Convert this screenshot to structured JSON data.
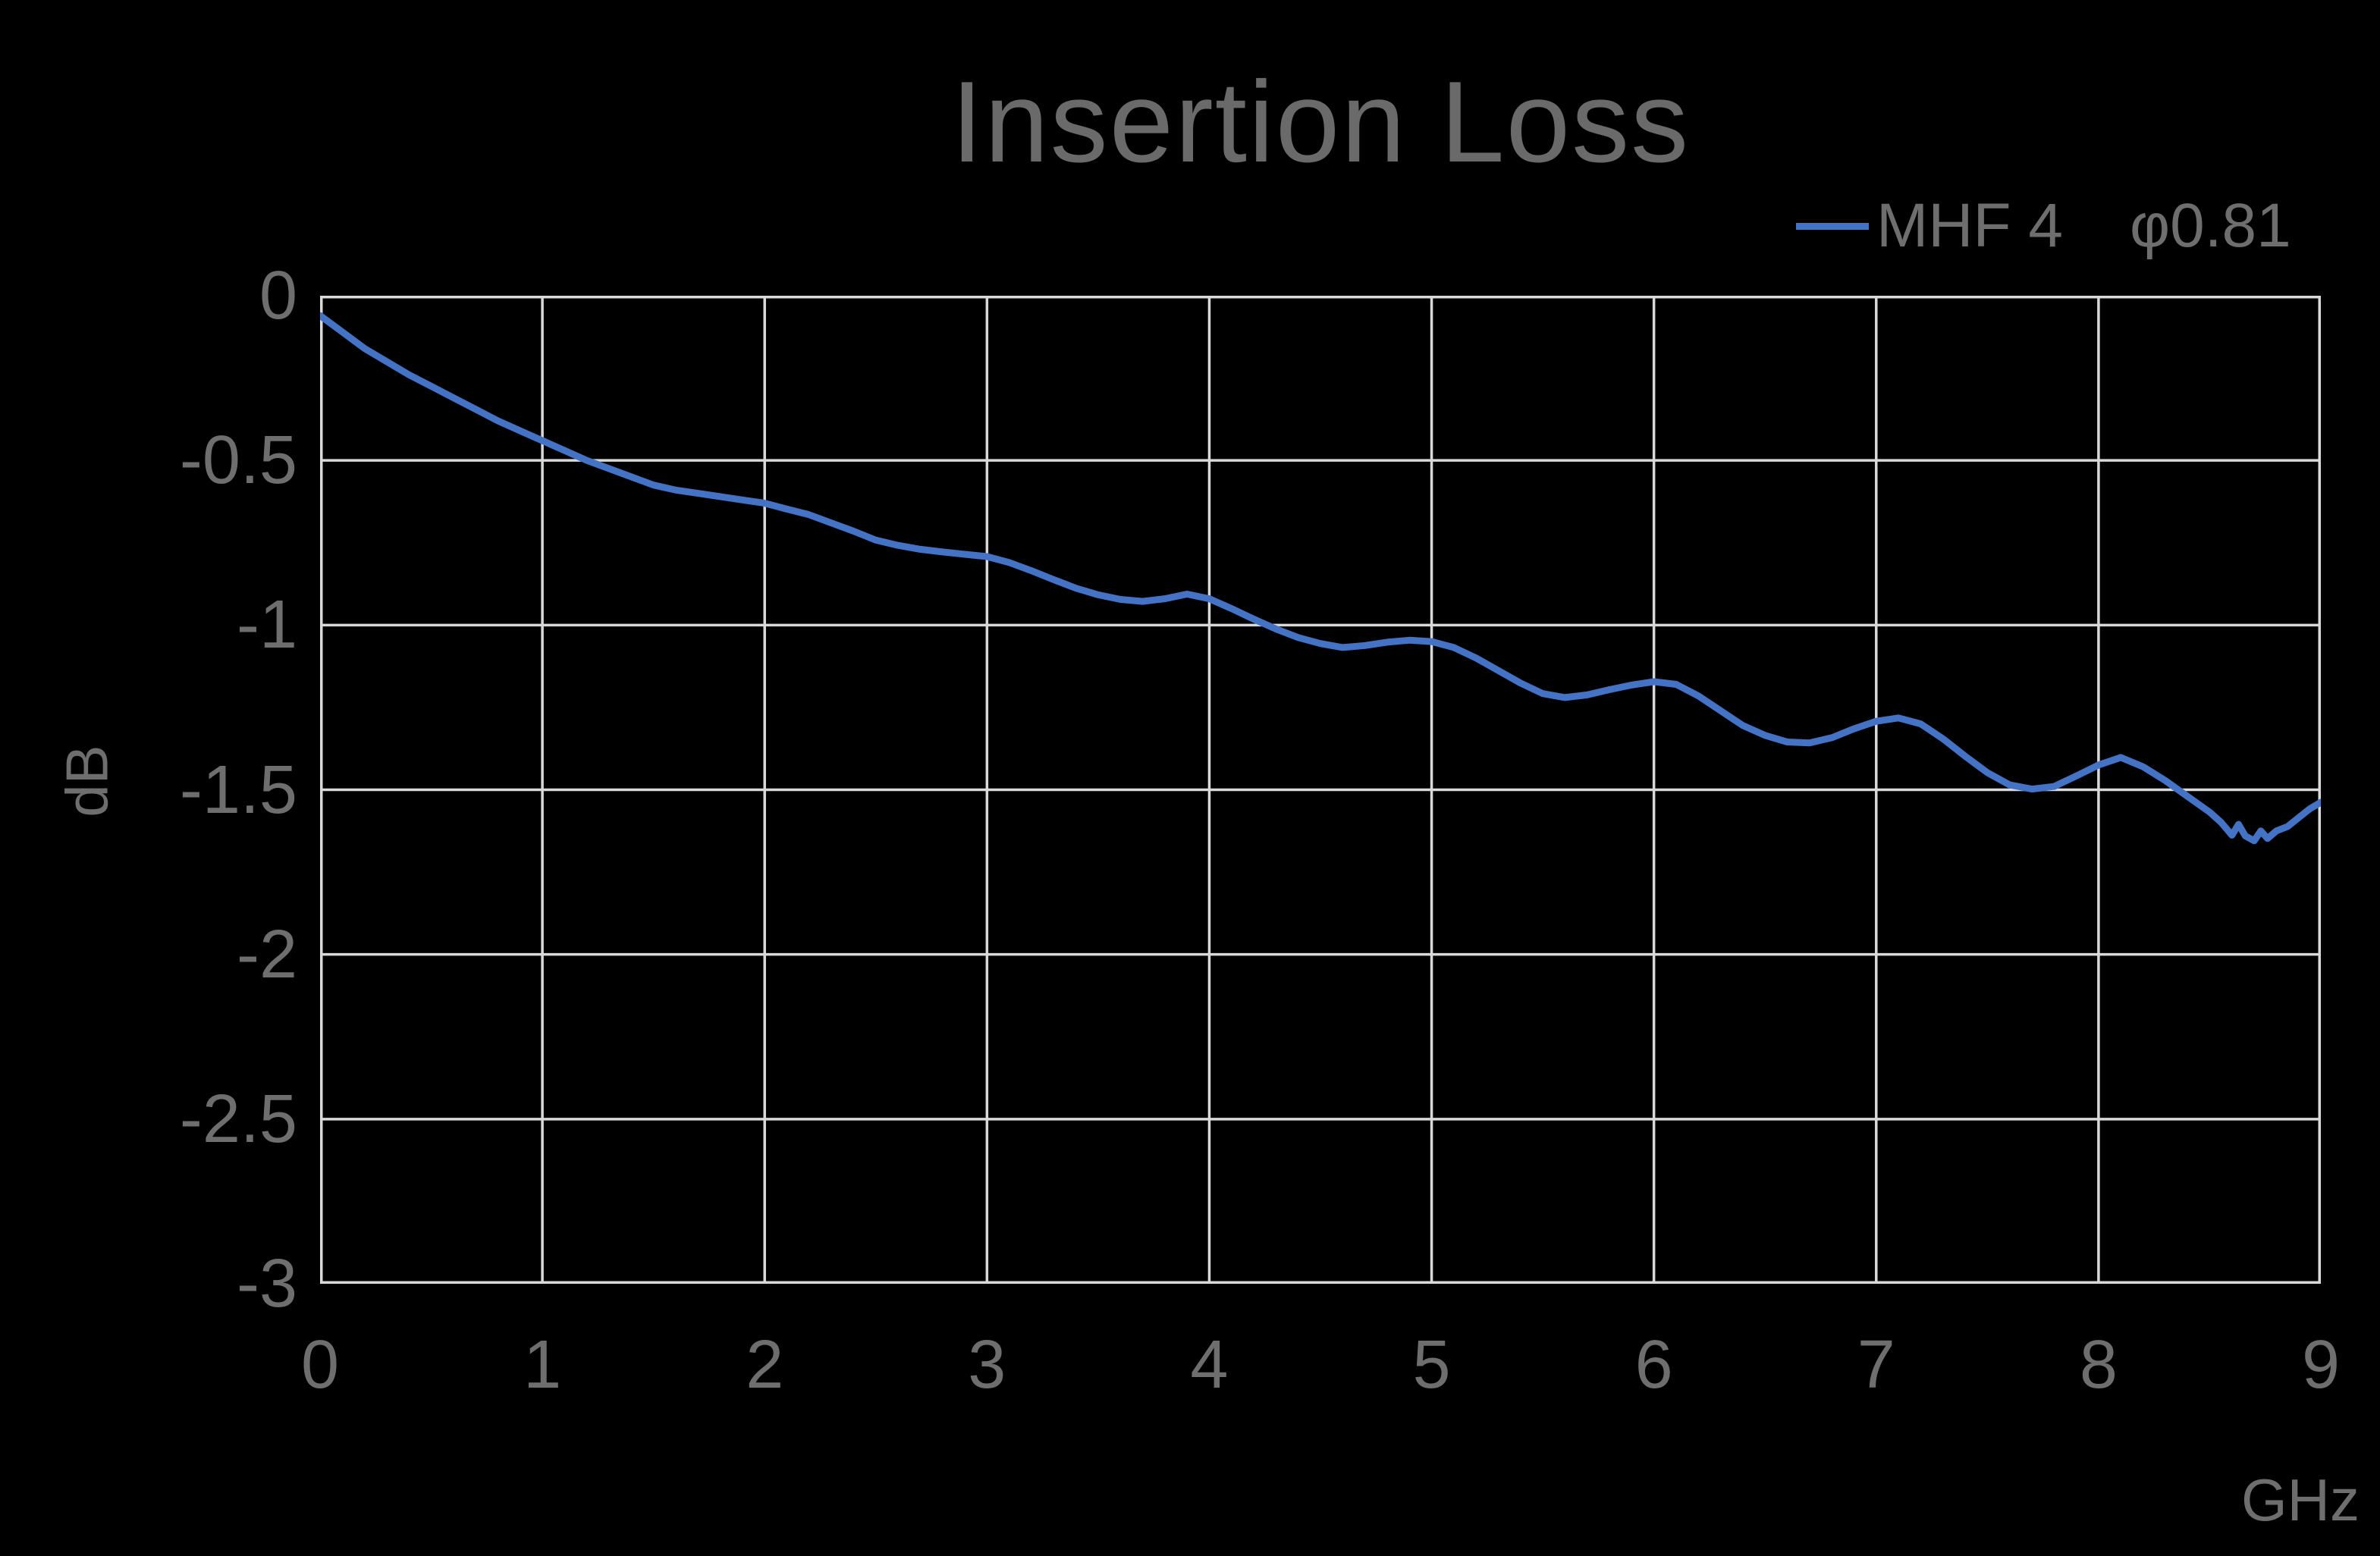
{
  "chart": {
    "title": "Insertion Loss",
    "ylabel": "dB",
    "x_unit": "GHz",
    "legend": {
      "series_label": "MHF 4",
      "series_sublabel": "φ0.81"
    }
  },
  "chart_data": {
    "type": "line",
    "title": "Insertion Loss",
    "xlabel": "GHz",
    "ylabel": "dB",
    "xlim": [
      0,
      9
    ],
    "ylim": [
      -3,
      0
    ],
    "xticks": [
      0,
      1,
      2,
      3,
      4,
      5,
      6,
      7,
      8,
      9
    ],
    "xtick_labels": [
      "0",
      "1",
      "2",
      "3",
      "4",
      "5",
      "6",
      "7",
      "8",
      "9"
    ],
    "yticks": [
      0,
      -0.5,
      -1,
      -1.5,
      -2,
      -2.5,
      -3
    ],
    "ytick_labels": [
      "0",
      "-0.5",
      "-1",
      "-1.5",
      "-2",
      "-2.5",
      "-3"
    ],
    "grid": true,
    "legend_position": "top-right",
    "colors": {
      "background": "#000000",
      "grid": "#D9D9D9",
      "line": "#4472C4",
      "text": "#6E6E6E",
      "title_text": "#6A6A6A"
    },
    "series": [
      {
        "name": "MHF 4 φ0.81",
        "color": "#4472C4",
        "x": [
          0,
          0.1,
          0.2,
          0.3,
          0.4,
          0.5,
          0.6,
          0.7,
          0.8,
          0.9,
          1.0,
          1.1,
          1.2,
          1.3,
          1.4,
          1.5,
          1.6,
          1.7,
          1.8,
          1.9,
          2.0,
          2.1,
          2.2,
          2.3,
          2.4,
          2.5,
          2.6,
          2.7,
          2.8,
          2.9,
          3.0,
          3.1,
          3.2,
          3.3,
          3.4,
          3.5,
          3.6,
          3.7,
          3.8,
          3.9,
          4.0,
          4.1,
          4.2,
          4.3,
          4.4,
          4.5,
          4.6,
          4.7,
          4.8,
          4.9,
          5.0,
          5.1,
          5.2,
          5.3,
          5.4,
          5.5,
          5.6,
          5.7,
          5.8,
          5.9,
          6.0,
          6.1,
          6.2,
          6.3,
          6.4,
          6.5,
          6.6,
          6.7,
          6.8,
          6.9,
          7.0,
          7.1,
          7.2,
          7.3,
          7.4,
          7.5,
          7.6,
          7.7,
          7.8,
          7.9,
          8.0,
          8.1,
          8.2,
          8.3,
          8.4,
          8.5,
          8.55,
          8.6,
          8.63,
          8.66,
          8.7,
          8.73,
          8.76,
          8.8,
          8.85,
          8.9,
          8.95,
          9.0
        ],
        "y": [
          -0.06,
          -0.11,
          -0.16,
          -0.2,
          -0.24,
          -0.275,
          -0.31,
          -0.345,
          -0.38,
          -0.41,
          -0.44,
          -0.47,
          -0.5,
          -0.525,
          -0.55,
          -0.575,
          -0.59,
          -0.6,
          -0.61,
          -0.62,
          -0.63,
          -0.648,
          -0.665,
          -0.69,
          -0.715,
          -0.742,
          -0.758,
          -0.77,
          -0.778,
          -0.785,
          -0.792,
          -0.81,
          -0.835,
          -0.862,
          -0.888,
          -0.908,
          -0.922,
          -0.928,
          -0.92,
          -0.906,
          -0.92,
          -0.95,
          -0.982,
          -1.012,
          -1.038,
          -1.056,
          -1.068,
          -1.062,
          -1.052,
          -1.046,
          -1.05,
          -1.068,
          -1.1,
          -1.138,
          -1.176,
          -1.208,
          -1.22,
          -1.212,
          -1.196,
          -1.182,
          -1.172,
          -1.18,
          -1.215,
          -1.26,
          -1.305,
          -1.335,
          -1.355,
          -1.358,
          -1.342,
          -1.315,
          -1.292,
          -1.282,
          -1.3,
          -1.345,
          -1.398,
          -1.448,
          -1.485,
          -1.498,
          -1.49,
          -1.458,
          -1.425,
          -1.402,
          -1.43,
          -1.472,
          -1.52,
          -1.568,
          -1.598,
          -1.638,
          -1.605,
          -1.64,
          -1.655,
          -1.625,
          -1.648,
          -1.625,
          -1.612,
          -1.585,
          -1.558,
          -1.538
        ]
      }
    ]
  }
}
